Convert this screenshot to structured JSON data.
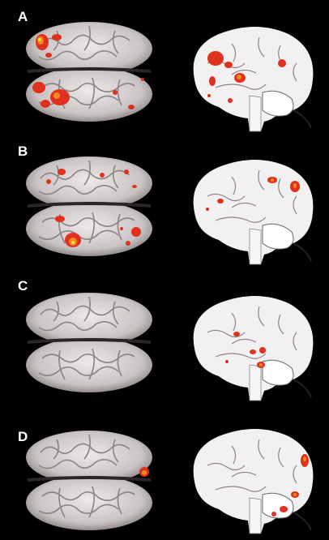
{
  "panels": [
    {
      "label": "A"
    },
    {
      "label": "B"
    },
    {
      "label": "C"
    },
    {
      "label": "D"
    }
  ],
  "colors": {
    "background": "#000000",
    "brain_fill": "#d9d5d4",
    "brain_shade": "#8c8484",
    "sagittal_fill": "#f2f0f0",
    "activation_red": "#e0301e",
    "activation_orange": "#f08a1c",
    "activation_yellow": "#f7e23a"
  },
  "icons": {
    "top_view": "brain-top-view-icon",
    "side_view": "brain-sagittal-view-icon"
  }
}
